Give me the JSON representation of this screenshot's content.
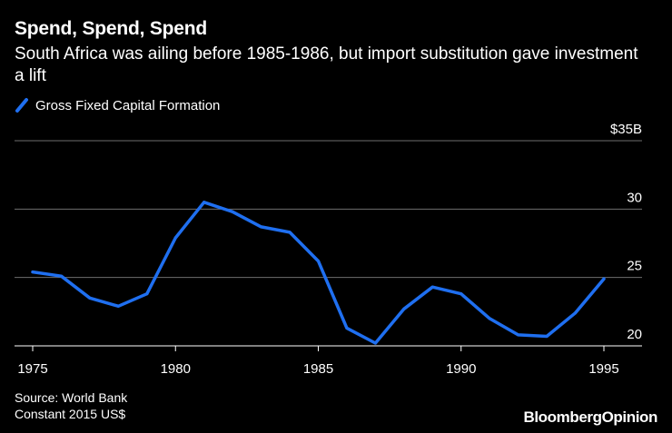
{
  "header": {
    "title": "Spend, Spend, Spend",
    "subtitle": "South Africa was ailing before 1985-1986, but import substitution gave investment a lift"
  },
  "colors": {
    "series": "#1f6ff0",
    "grid": "#6e6e6e",
    "text": "#ffffff",
    "background": "#000000"
  },
  "chart_data": {
    "type": "line",
    "title": "Spend, Spend, Spend",
    "xlabel": "",
    "ylabel": "",
    "xlim": [
      1974.5,
      1996
    ],
    "ylim": [
      20,
      35
    ],
    "x_ticks": [
      1975,
      1980,
      1985,
      1990,
      1995
    ],
    "x_tick_labels": [
      "1975",
      "1980",
      "1985",
      "1990",
      "1995"
    ],
    "y_ticks": [
      20,
      25,
      30,
      35
    ],
    "y_tick_labels": [
      "20",
      "25",
      "30",
      "$35B"
    ],
    "grid": true,
    "legend": "top-left",
    "series": [
      {
        "name": "Gross Fixed Capital Formation",
        "x": [
          1975,
          1976,
          1977,
          1978,
          1979,
          1980,
          1981,
          1982,
          1983,
          1984,
          1985,
          1986,
          1987,
          1988,
          1989,
          1990,
          1991,
          1992,
          1993,
          1994,
          1995
        ],
        "values": [
          25.4,
          25.1,
          23.5,
          22.9,
          23.8,
          27.9,
          30.5,
          29.8,
          28.7,
          28.3,
          26.2,
          21.3,
          20.2,
          22.7,
          24.3,
          23.8,
          22.0,
          20.8,
          20.7,
          22.4,
          24.9
        ]
      }
    ]
  },
  "footer": {
    "source": "Source: World Bank",
    "note": "Constant 2015 US$"
  },
  "brand": {
    "part1": "Bloomberg",
    "part2": "Opinion"
  }
}
